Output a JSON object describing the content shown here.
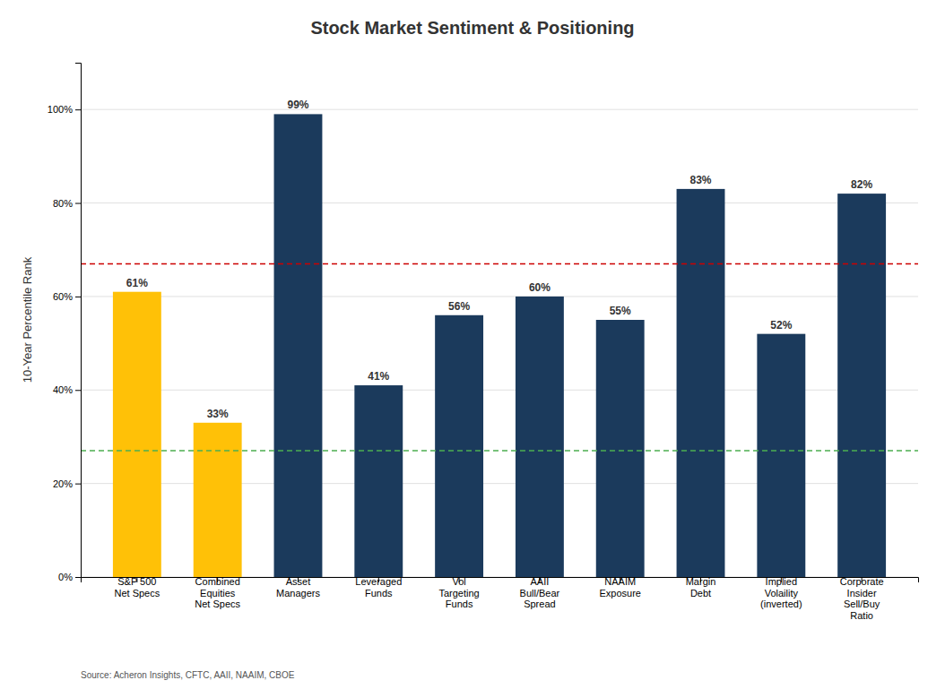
{
  "chart_data": {
    "type": "bar",
    "title": "Stock Market Sentiment & Positioning",
    "ylabel": "10-Year Percentile Rank",
    "source": "Source: Acheron Insights, CFTC, AAII, NAAIM, CBOE",
    "categories": [
      "S&P 500\nNet Specs",
      "Combined\nEquities\nNet Specs",
      "Asset\nManagers",
      "Leveraged\nFunds",
      "Vol\nTargeting\nFunds",
      "AAII\nBull/Bear\nSpread",
      "NAAIM\nExposure",
      "Margin\nDebt",
      "Implied\nVolaility\n(inverted)",
      "Corporate\nInsider\nSell/Buy\nRatio"
    ],
    "values": [
      61,
      33,
      99,
      41,
      56,
      60,
      55,
      83,
      52,
      82
    ],
    "value_labels": [
      "61%",
      "33%",
      "99%",
      "41%",
      "56%",
      "60%",
      "55%",
      "83%",
      "52%",
      "82%"
    ],
    "data_labels": true,
    "colors": [
      "#FFC107",
      "#FFC107",
      "#1B3A5C",
      "#1B3A5C",
      "#1B3A5C",
      "#1B3A5C",
      "#1B3A5C",
      "#1B3A5C",
      "#1B3A5C",
      "#1B3A5C"
    ],
    "reference_lines": [
      {
        "value": 67,
        "color": "#CC0000"
      },
      {
        "value": 27,
        "color": "#4CAF50"
      }
    ],
    "ylim": [
      0,
      110
    ],
    "yticks": [
      {
        "value": 0,
        "label": "0%"
      },
      {
        "value": 20,
        "label": "20%"
      },
      {
        "value": 40,
        "label": "40%"
      },
      {
        "value": 60,
        "label": "60%"
      },
      {
        "value": 80,
        "label": "80%"
      },
      {
        "value": 100,
        "label": "100%"
      }
    ],
    "grid": true
  }
}
